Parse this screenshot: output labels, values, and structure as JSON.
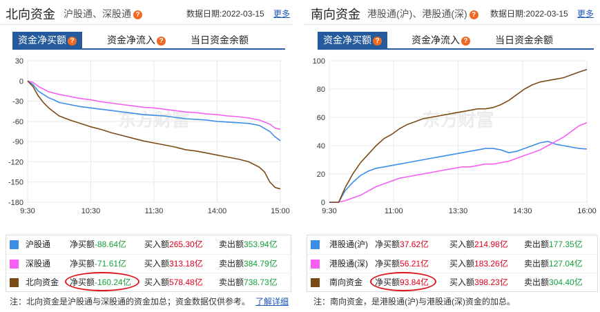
{
  "north": {
    "title": "北向资金",
    "subtitle": "沪股通、深股通",
    "date_label": "数据日期:",
    "date": "2022-03-15",
    "more": "更多",
    "tabs": [
      "资金净买额",
      "资金净流入",
      "当日资金余额"
    ],
    "watermark": "东方财富",
    "legend": [
      {
        "name": "沪股通",
        "net_label": "净买额",
        "net": "-88.64亿",
        "buy_label": "买入额",
        "buy": "265.30亿",
        "sell_label": "卖出额",
        "sell": "353.94亿",
        "color": "#3a8ee6"
      },
      {
        "name": "深股通",
        "net_label": "净买额",
        "net": "-71.61亿",
        "buy_label": "买入额",
        "buy": "313.18亿",
        "sell_label": "卖出额",
        "sell": "384.79亿",
        "color": "#f65ff2"
      },
      {
        "name": "北向资金",
        "net_label": "净买额",
        "net": "-160.24亿",
        "buy_label": "买入额",
        "buy": "578.48亿",
        "sell_label": "卖出额",
        "sell": "738.73亿",
        "color": "#7a4a16"
      }
    ],
    "note": "注：北向资金是沪股通与深股通的资金加总；资金数据仅供参考。",
    "note_link": "了解详细",
    "chart_data": {
      "type": "line",
      "x_ticks": [
        "9:30",
        "10:30",
        "11:30",
        "14:00",
        "15:00"
      ],
      "ylim": [
        -180,
        30
      ],
      "y_ticks": [
        30,
        0,
        -30,
        -60,
        -90,
        -120,
        -150,
        -180
      ],
      "grid": true,
      "series": [
        {
          "name": "沪股通",
          "color": "#3a8ee6",
          "x": [
            0,
            5,
            10,
            15,
            20,
            25,
            30,
            40,
            50,
            60,
            70,
            80,
            90,
            100,
            110,
            120,
            130,
            140,
            150,
            160,
            170,
            180,
            190,
            200,
            210,
            220,
            230,
            235,
            240
          ],
          "values": [
            0,
            -5,
            -15,
            -20,
            -25,
            -28,
            -32,
            -35,
            -38,
            -40,
            -42,
            -44,
            -46,
            -48,
            -50,
            -51,
            -52,
            -54,
            -56,
            -57,
            -58,
            -60,
            -61,
            -62,
            -63,
            -66,
            -75,
            -83,
            -88.64
          ]
        },
        {
          "name": "深股通",
          "color": "#f65ff2",
          "x": [
            0,
            5,
            10,
            15,
            20,
            25,
            30,
            40,
            50,
            60,
            70,
            80,
            90,
            100,
            110,
            120,
            130,
            140,
            150,
            160,
            170,
            180,
            190,
            200,
            210,
            220,
            230,
            235,
            240
          ],
          "values": [
            0,
            -2,
            -8,
            -12,
            -16,
            -18,
            -20,
            -23,
            -26,
            -28,
            -31,
            -33,
            -35,
            -37,
            -39,
            -40,
            -42,
            -44,
            -46,
            -47,
            -49,
            -50,
            -52,
            -53,
            -55,
            -58,
            -64,
            -70,
            -71.61
          ]
        },
        {
          "name": "北向资金",
          "color": "#7a4a16",
          "x": [
            0,
            5,
            10,
            15,
            20,
            25,
            30,
            40,
            50,
            60,
            70,
            80,
            90,
            100,
            110,
            120,
            130,
            140,
            150,
            160,
            170,
            180,
            190,
            200,
            210,
            220,
            225,
            230,
            235,
            240
          ],
          "values": [
            0,
            -8,
            -22,
            -32,
            -40,
            -46,
            -52,
            -58,
            -63,
            -68,
            -72,
            -77,
            -81,
            -85,
            -89,
            -92,
            -95,
            -98,
            -102,
            -104,
            -107,
            -110,
            -113,
            -116,
            -120,
            -128,
            -135,
            -150,
            -158,
            -160.24
          ]
        }
      ]
    }
  },
  "south": {
    "title": "南向资金",
    "subtitle": "港股通(沪)、港股通(深)",
    "date_label": "数据日期:",
    "date": "2022-03-15",
    "more": "更多",
    "tabs": [
      "资金净买额",
      "资金净流入",
      "当日资金余额"
    ],
    "watermark": "东方财富",
    "legend": [
      {
        "name": "港股通(沪)",
        "net_label": "净买额",
        "net": "37.62亿",
        "buy_label": "买入额",
        "buy": "214.98亿",
        "sell_label": "卖出额",
        "sell": "177.35亿",
        "color": "#3a8ee6"
      },
      {
        "name": "港股通(深)",
        "net_label": "净买额",
        "net": "56.21亿",
        "buy_label": "买入额",
        "buy": "183.26亿",
        "sell_label": "卖出额",
        "sell": "127.04亿",
        "color": "#f65ff2"
      },
      {
        "name": "南向资金",
        "net_label": "净买额",
        "net": "93.84亿",
        "buy_label": "买入额",
        "buy": "398.23亿",
        "sell_label": "卖出额",
        "sell": "304.40亿",
        "color": "#7a4a16"
      }
    ],
    "note": "注：南向资金，是港股通(沪)与港股通(深)资金的加总。",
    "chart_data": {
      "type": "line",
      "x_ticks": [
        "9:30",
        "11:00",
        "13:30",
        "14:30",
        "16:00"
      ],
      "ylim": [
        0,
        100
      ],
      "y_ticks": [
        100,
        80,
        60,
        40,
        20,
        0
      ],
      "grid": true,
      "series": [
        {
          "name": "港股通(沪)",
          "color": "#3a8ee6",
          "x": [
            0,
            10,
            12,
            20,
            30,
            40,
            50,
            60,
            70,
            80,
            90,
            100,
            110,
            120,
            130,
            140,
            150,
            160,
            170,
            180,
            190,
            200,
            210,
            220,
            230,
            240,
            250,
            260,
            270,
            280,
            290,
            300,
            310,
            320,
            330
          ],
          "values": [
            0,
            0,
            0,
            8,
            14,
            19,
            22,
            24,
            25,
            26,
            27,
            28,
            29,
            30,
            31,
            32,
            33,
            34,
            35,
            36,
            37,
            38,
            38,
            37,
            35,
            36,
            38,
            40,
            42,
            43,
            41,
            40,
            39,
            38,
            37.62
          ]
        },
        {
          "name": "港股通(深)",
          "color": "#f65ff2",
          "x": [
            0,
            10,
            20,
            30,
            40,
            50,
            60,
            70,
            80,
            90,
            100,
            110,
            120,
            130,
            140,
            150,
            160,
            170,
            180,
            190,
            200,
            210,
            220,
            230,
            240,
            250,
            260,
            270,
            280,
            290,
            300,
            310,
            320,
            330
          ],
          "values": [
            0,
            0,
            1,
            3,
            5,
            8,
            11,
            13,
            15,
            17,
            18,
            19,
            20,
            21,
            22,
            23,
            24,
            25,
            25,
            26,
            27,
            27,
            28,
            29,
            31,
            33,
            35,
            37,
            40,
            43,
            46,
            50,
            54,
            56.21
          ]
        },
        {
          "name": "南向资金",
          "color": "#7a4a16",
          "x": [
            0,
            10,
            12,
            20,
            30,
            40,
            50,
            60,
            70,
            80,
            90,
            100,
            110,
            120,
            130,
            140,
            150,
            160,
            170,
            180,
            190,
            200,
            210,
            220,
            230,
            240,
            250,
            260,
            270,
            280,
            290,
            300,
            310,
            320,
            330
          ],
          "values": [
            0,
            0,
            0,
            10,
            20,
            28,
            34,
            40,
            45,
            48,
            52,
            55,
            57,
            59,
            60,
            61,
            62,
            63,
            64,
            65,
            66,
            66,
            67,
            69,
            72,
            76,
            80,
            83,
            85,
            86,
            87,
            88,
            90,
            92,
            93.84
          ]
        }
      ]
    }
  }
}
